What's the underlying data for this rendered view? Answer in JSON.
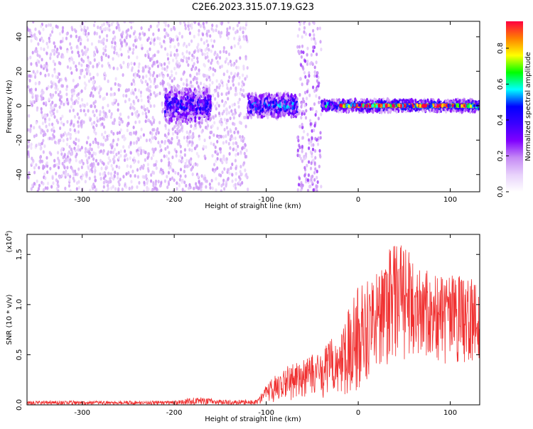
{
  "title": "C2E6.2023.315.07.19.G23",
  "chart_data": [
    {
      "type": "heatmap",
      "xlabel": "Height of straight line (km)",
      "ylabel": "Frequency (Hz)",
      "xlim": [
        -360,
        132
      ],
      "ylim": [
        -50,
        49
      ],
      "xticks": [
        -300,
        -200,
        -100,
        0,
        100
      ],
      "yticks": [
        -40,
        -20,
        0,
        20,
        40
      ],
      "colorbar": {
        "label": "Normalized spectral amplitude",
        "range": [
          0,
          0.95
        ],
        "ticks": [
          "0.0",
          "0.2",
          "0.4",
          "0.6",
          "0.8"
        ],
        "tick_values": [
          0,
          0.2,
          0.4,
          0.6,
          0.8
        ],
        "colors": [
          "#ffffff",
          "#e8d2fb",
          "#c58af5",
          "#8000ff",
          "#3a00ff",
          "#0000ff",
          "#00ffff",
          "#00ff00",
          "#ffff00",
          "#ff8000",
          "#ff0040"
        ]
      },
      "regions": [
        {
          "x": [
            -360,
            -120
          ],
          "freq_half_width": 50,
          "amplitude": 0.15,
          "note_colors": "light purple scatter"
        },
        {
          "x": [
            -210,
            -160
          ],
          "freq_half_width": 12,
          "amplitude": 0.35
        },
        {
          "x": [
            -120,
            -66
          ],
          "freq_half_width": 8,
          "amplitude": 0.4
        },
        {
          "x": [
            -66,
            -40
          ],
          "freq_half_width": 50,
          "amplitude": 0.2
        },
        {
          "x": [
            -40,
            132
          ],
          "freq_half_width": 4,
          "amplitude": 0.45
        },
        {
          "x": [
            -20,
            132
          ],
          "freq_half_width": 0.6,
          "amplitude": 0.95
        }
      ]
    },
    {
      "type": "line",
      "xlabel": "Height of straight line (km)",
      "ylabel": "SNR (10 * v/v)",
      "y_multiplier": "(x10^4)",
      "xlim": [
        -360,
        132
      ],
      "ylim": [
        0,
        1.7
      ],
      "xticks": [
        -300,
        -200,
        -100,
        0,
        100
      ],
      "yticks": [
        "0.0",
        "0.5",
        "1.0",
        "1.5"
      ],
      "ytick_values": [
        0,
        0.5,
        1.0,
        1.5
      ],
      "color": "#f03030",
      "envelope": {
        "x": [
          -360,
          -300,
          -200,
          -175,
          -150,
          -110,
          -100,
          -80,
          -60,
          -40,
          -20,
          0,
          20,
          40,
          60,
          80,
          100,
          132
        ],
        "lower": [
          0.0,
          0.0,
          0.0,
          0.0,
          0.0,
          0.0,
          0.02,
          0.03,
          0.04,
          0.05,
          0.08,
          0.15,
          0.3,
          0.4,
          0.45,
          0.4,
          0.35,
          0.35
        ],
        "upper": [
          0.04,
          0.04,
          0.04,
          0.08,
          0.05,
          0.05,
          0.2,
          0.4,
          0.45,
          0.55,
          0.75,
          1.2,
          1.35,
          1.65,
          1.5,
          1.3,
          1.3,
          1.25
        ]
      }
    }
  ]
}
